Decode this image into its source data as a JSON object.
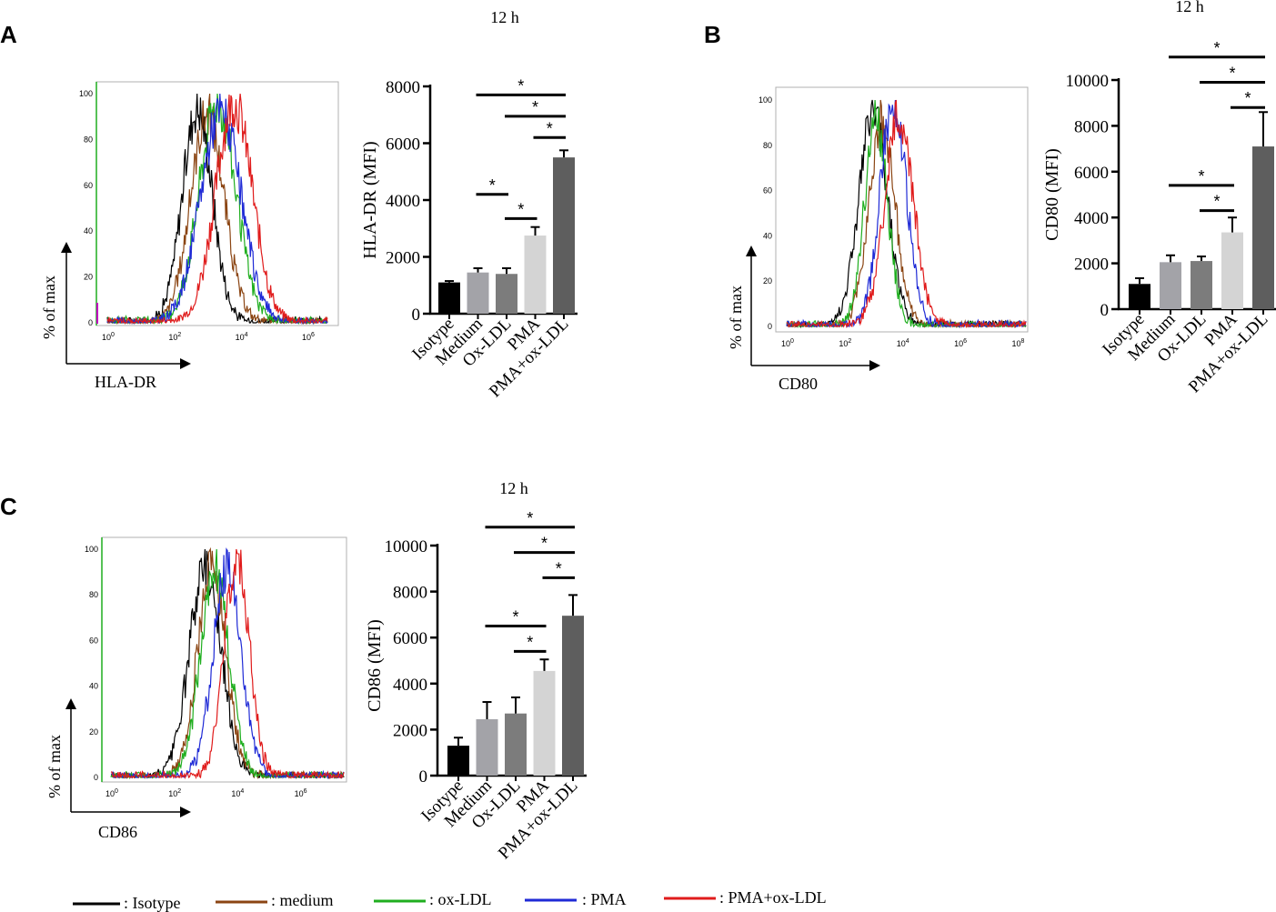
{
  "panels": [
    {
      "id": "A",
      "letter": "A",
      "histogram": {
        "xlabel": "HLA-DR",
        "ylabel": "% of max",
        "yticks": [
          "0",
          "20",
          "40",
          "60",
          "80",
          "100"
        ],
        "xticks": [
          {
            "base": "10",
            "exp": "0"
          },
          {
            "base": "10",
            "exp": "2"
          },
          {
            "base": "10",
            "exp": "4"
          },
          {
            "base": "10",
            "exp": "6"
          }
        ],
        "xmax_decades": 6.6,
        "peaks": [
          2.7,
          3.0,
          3.3,
          3.4,
          3.8
        ],
        "widths": [
          0.45,
          0.5,
          0.55,
          0.6,
          0.55
        ]
      },
      "bar": {
        "title": "12 h",
        "ylabel": "HLA-DR (MFI)",
        "ymax": 8000,
        "yticks": [
          0,
          2000,
          4000,
          6000,
          8000
        ],
        "ticklabels": [
          "0",
          "2000",
          "4000",
          "6000",
          "8000"
        ],
        "sig": [
          {
            "from": 1,
            "to": 4,
            "label": "*",
            "y": 7700
          },
          {
            "from": 2,
            "to": 4,
            "label": "*",
            "y": 6950
          },
          {
            "from": 3,
            "to": 4,
            "label": "*",
            "y": 6200
          },
          {
            "from": 1,
            "to": 2,
            "label": "*",
            "y": 4200
          },
          {
            "from": 2,
            "to": 3,
            "label": "*",
            "y": 3350
          }
        ]
      }
    },
    {
      "id": "B",
      "letter": "B",
      "histogram": {
        "xlabel": "CD80",
        "ylabel": "% of max",
        "yticks": [
          "0",
          "20",
          "40",
          "60",
          "80",
          "100"
        ],
        "xticks": [
          {
            "base": "10",
            "exp": "0"
          },
          {
            "base": "10",
            "exp": "2"
          },
          {
            "base": "10",
            "exp": "4"
          },
          {
            "base": "10",
            "exp": "6"
          },
          {
            "base": "10",
            "exp": "8"
          }
        ],
        "xmax_decades": 8.3,
        "peaks": [
          3.0,
          3.3,
          3.1,
          3.7,
          3.9
        ],
        "widths": [
          0.5,
          0.45,
          0.4,
          0.45,
          0.5
        ]
      },
      "bar": {
        "title": "12 h",
        "ylabel": "CD80 (MFI)",
        "ymax": 10000,
        "yticks": [
          0,
          2000,
          4000,
          6000,
          8000,
          10000
        ],
        "ticklabels": [
          "0",
          "2000",
          "4000",
          "6000",
          "8000",
          "10000"
        ],
        "sig": [
          {
            "from": 1,
            "to": 4,
            "label": "*",
            "y": 11000
          },
          {
            "from": 2,
            "to": 4,
            "label": "*",
            "y": 9900
          },
          {
            "from": 3,
            "to": 4,
            "label": "*",
            "y": 8800
          },
          {
            "from": 1,
            "to": 3,
            "label": "*",
            "y": 5400
          },
          {
            "from": 2,
            "to": 3,
            "label": "*",
            "y": 4300
          }
        ]
      }
    },
    {
      "id": "C",
      "letter": "C",
      "histogram": {
        "xlabel": "CD86",
        "ylabel": "% of max",
        "yticks": [
          "0",
          "20",
          "40",
          "60",
          "80",
          "100"
        ],
        "xticks": [
          {
            "base": "10",
            "exp": "0"
          },
          {
            "base": "10",
            "exp": "2"
          },
          {
            "base": "10",
            "exp": "4"
          },
          {
            "base": "10",
            "exp": "6"
          }
        ],
        "xmax_decades": 7.4,
        "peaks": [
          3.0,
          3.2,
          3.3,
          3.7,
          4.0
        ],
        "widths": [
          0.5,
          0.45,
          0.45,
          0.45,
          0.4
        ]
      },
      "bar": {
        "title": "12 h",
        "ylabel": "CD86 (MFI)",
        "ymax": 10000,
        "yticks": [
          0,
          2000,
          4000,
          6000,
          8000,
          10000
        ],
        "ticklabels": [
          "0",
          "2000",
          "4000",
          "6000",
          "8000",
          "10000"
        ],
        "sig": [
          {
            "from": 1,
            "to": 4,
            "label": "*",
            "y": 10800
          },
          {
            "from": 2,
            "to": 4,
            "label": "*",
            "y": 9700
          },
          {
            "from": 3,
            "to": 4,
            "label": "*",
            "y": 8600
          },
          {
            "from": 1,
            "to": 3,
            "label": "*",
            "y": 6500
          },
          {
            "from": 2,
            "to": 3,
            "label": "*",
            "y": 5400
          }
        ]
      }
    }
  ],
  "chart_data": [
    {
      "type": "bar",
      "panel": "A",
      "title": "12 h",
      "xlabel": "",
      "ylabel": "HLA-DR (MFI)",
      "ylim": [
        0,
        8000
      ],
      "categories": [
        "Isotype",
        "Medium",
        "Ox-LDL",
        "PMA",
        "PMA+ox-LDL"
      ],
      "values": [
        1100,
        1450,
        1400,
        2750,
        5500
      ],
      "errors": [
        50,
        150,
        200,
        300,
        250
      ],
      "colors": [
        "#000000",
        "#a3a3a8",
        "#7c7c7c",
        "#d4d4d4",
        "#5e5e5e"
      ],
      "significance": "*"
    },
    {
      "type": "bar",
      "panel": "B",
      "title": "12 h",
      "xlabel": "",
      "ylabel": "CD80 (MFI)",
      "ylim": [
        0,
        10000
      ],
      "categories": [
        "Isotype",
        "Medium",
        "Ox-LDL",
        "PMA",
        "PMA+ox-LDL"
      ],
      "values": [
        1100,
        2050,
        2100,
        3350,
        7100
      ],
      "errors": [
        250,
        300,
        200,
        650,
        1500
      ],
      "colors": [
        "#000000",
        "#a3a3a8",
        "#7c7c7c",
        "#d4d4d4",
        "#5e5e5e"
      ],
      "significance": "*"
    },
    {
      "type": "bar",
      "panel": "C",
      "title": "12 h",
      "xlabel": "",
      "ylabel": "CD86 (MFI)",
      "ylim": [
        0,
        10000
      ],
      "categories": [
        "Isotype",
        "Medium",
        "Ox-LDL",
        "PMA",
        "PMA+ox-LDL"
      ],
      "values": [
        1300,
        2450,
        2700,
        4550,
        6950
      ],
      "errors": [
        350,
        750,
        700,
        500,
        900
      ],
      "colors": [
        "#000000",
        "#a3a3a8",
        "#7c7c7c",
        "#d4d4d4",
        "#5e5e5e"
      ],
      "significance": "*"
    },
    {
      "type": "line",
      "panel": "A",
      "title": "",
      "xlabel": "HLA-DR",
      "ylabel": "% of max",
      "x_scale": "log10",
      "ylim": [
        0,
        100
      ],
      "series": [
        {
          "name": ": Isotype",
          "peak_log10": 2.7
        },
        {
          "name": ": medium",
          "peak_log10": 3.0
        },
        {
          "name": ": ox-LDL",
          "peak_log10": 3.3
        },
        {
          "name": ": PMA",
          "peak_log10": 3.4
        },
        {
          "name": ": PMA+ox-LDL",
          "peak_log10": 3.8
        }
      ]
    },
    {
      "type": "line",
      "panel": "B",
      "title": "",
      "xlabel": "CD80",
      "ylabel": "% of max",
      "x_scale": "log10",
      "ylim": [
        0,
        100
      ],
      "series": [
        {
          "name": ": Isotype",
          "peak_log10": 3.0
        },
        {
          "name": ": medium",
          "peak_log10": 3.3
        },
        {
          "name": ": ox-LDL",
          "peak_log10": 3.1
        },
        {
          "name": ": PMA",
          "peak_log10": 3.7
        },
        {
          "name": ": PMA+ox-LDL",
          "peak_log10": 3.9
        }
      ]
    },
    {
      "type": "line",
      "panel": "C",
      "title": "",
      "xlabel": "CD86",
      "ylabel": "% of max",
      "x_scale": "log10",
      "ylim": [
        0,
        100
      ],
      "series": [
        {
          "name": ": Isotype",
          "peak_log10": 3.0
        },
        {
          "name": ": medium",
          "peak_log10": 3.2
        },
        {
          "name": ": ox-LDL",
          "peak_log10": 3.3
        },
        {
          "name": ": PMA",
          "peak_log10": 3.7
        },
        {
          "name": ": PMA+ox-LDL",
          "peak_log10": 4.0
        }
      ]
    }
  ],
  "legend": {
    "items": [
      {
        "label": ": Isotype",
        "color": "#000000"
      },
      {
        "label": ": medium",
        "color": "#8b4513"
      },
      {
        "label": ": ox-LDL",
        "color": "#1fae1f"
      },
      {
        "label": ": PMA",
        "color": "#1f2ad6"
      },
      {
        "label": ": PMA+ox-LDL",
        "color": "#e01b1b"
      }
    ]
  },
  "colors": {
    "axis": "#000000",
    "frame": "#b0b0b0",
    "green_axis": "#1fae1f",
    "magenta": "#c000c0"
  }
}
